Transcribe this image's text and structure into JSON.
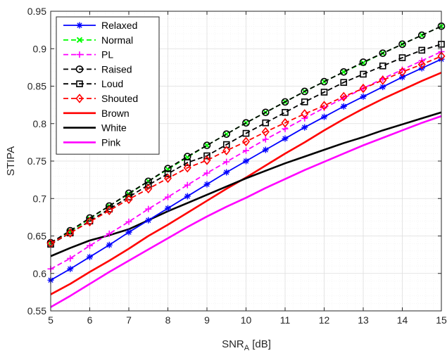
{
  "chart_data": {
    "type": "line",
    "xlabel": "SNR",
    "xlabel_sub": "A",
    "xlabel_unit": " [dB]",
    "ylabel": "STIPA",
    "xlim": [
      5,
      15
    ],
    "ylim": [
      0.55,
      0.95
    ],
    "xticks": [
      5,
      6,
      7,
      8,
      9,
      10,
      11,
      12,
      13,
      14,
      15
    ],
    "yticks": [
      0.55,
      0.6,
      0.65,
      0.7,
      0.75,
      0.8,
      0.85,
      0.9,
      0.95
    ],
    "ytick_labels": [
      "0.55",
      "0.6",
      "0.65",
      "0.7",
      "0.75",
      "0.8",
      "0.85",
      "0.9",
      "0.95"
    ],
    "grid": true,
    "legend_position": "top-left",
    "x": [
      5,
      5.5,
      6,
      6.5,
      7,
      7.5,
      8,
      8.5,
      9,
      9.5,
      10,
      10.5,
      11,
      11.5,
      12,
      12.5,
      13,
      13.5,
      14,
      14.5,
      15
    ],
    "series": [
      {
        "name": "Relaxed",
        "color": "#0000ff",
        "dash": "solid",
        "marker": "asterisk",
        "values": [
          0.591,
          0.606,
          0.622,
          0.638,
          0.655,
          0.671,
          0.687,
          0.703,
          0.719,
          0.735,
          0.75,
          0.765,
          0.78,
          0.795,
          0.809,
          0.823,
          0.836,
          0.849,
          0.862,
          0.874,
          0.886
        ]
      },
      {
        "name": "Normal",
        "color": "#00ff00",
        "dash": "dashed",
        "marker": "x",
        "values": [
          0.641,
          0.656,
          0.673,
          0.69,
          0.706,
          0.723,
          0.739,
          0.755,
          0.771,
          0.786,
          0.801,
          0.815,
          0.829,
          0.843,
          0.856,
          0.869,
          0.881,
          0.894,
          0.906,
          0.918,
          0.93
        ]
      },
      {
        "name": "PL",
        "color": "#ff00ff",
        "dash": "dashed",
        "marker": "plus",
        "values": [
          0.606,
          0.62,
          0.637,
          0.653,
          0.669,
          0.686,
          0.702,
          0.718,
          0.734,
          0.749,
          0.764,
          0.779,
          0.793,
          0.807,
          0.821,
          0.834,
          0.847,
          0.86,
          0.872,
          0.884,
          0.896
        ]
      },
      {
        "name": "Raised",
        "color": "#000000",
        "dash": "dashed",
        "marker": "circle",
        "values": [
          0.641,
          0.657,
          0.674,
          0.69,
          0.707,
          0.723,
          0.74,
          0.756,
          0.771,
          0.786,
          0.801,
          0.815,
          0.829,
          0.843,
          0.856,
          0.869,
          0.882,
          0.894,
          0.906,
          0.918,
          0.93
        ]
      },
      {
        "name": "Loud",
        "color": "#000000",
        "dash": "dashed",
        "marker": "square",
        "values": [
          0.639,
          0.654,
          0.67,
          0.686,
          0.702,
          0.718,
          0.733,
          0.748,
          0.757,
          0.772,
          0.787,
          0.801,
          0.815,
          0.829,
          0.842,
          0.855,
          0.866,
          0.877,
          0.888,
          0.898,
          0.906
        ]
      },
      {
        "name": "Shouted",
        "color": "#ff0000",
        "dash": "dashed",
        "marker": "diamond",
        "values": [
          0.64,
          0.654,
          0.669,
          0.684,
          0.699,
          0.713,
          0.727,
          0.741,
          0.751,
          0.764,
          0.776,
          0.789,
          0.801,
          0.813,
          0.824,
          0.836,
          0.847,
          0.858,
          0.869,
          0.879,
          0.89
        ]
      },
      {
        "name": "Brown",
        "color": "#ff0000",
        "dash": "solid",
        "marker": "none",
        "values": [
          0.572,
          0.586,
          0.602,
          0.617,
          0.633,
          0.65,
          0.665,
          0.681,
          0.697,
          0.713,
          0.728,
          0.744,
          0.76,
          0.775,
          0.791,
          0.806,
          0.82,
          0.833,
          0.845,
          0.857,
          0.868
        ]
      },
      {
        "name": "White",
        "color": "#000000",
        "dash": "solid",
        "marker": "none",
        "values": [
          0.623,
          0.634,
          0.644,
          0.651,
          0.659,
          0.671,
          0.683,
          0.694,
          0.705,
          0.716,
          0.727,
          0.737,
          0.747,
          0.756,
          0.765,
          0.774,
          0.782,
          0.791,
          0.799,
          0.807,
          0.815
        ]
      },
      {
        "name": "Pink",
        "color": "#ff00ff",
        "dash": "solid",
        "marker": "none",
        "values": [
          0.555,
          0.57,
          0.586,
          0.602,
          0.617,
          0.632,
          0.647,
          0.662,
          0.676,
          0.689,
          0.701,
          0.714,
          0.726,
          0.738,
          0.749,
          0.76,
          0.771,
          0.781,
          0.791,
          0.801,
          0.81
        ]
      }
    ]
  }
}
